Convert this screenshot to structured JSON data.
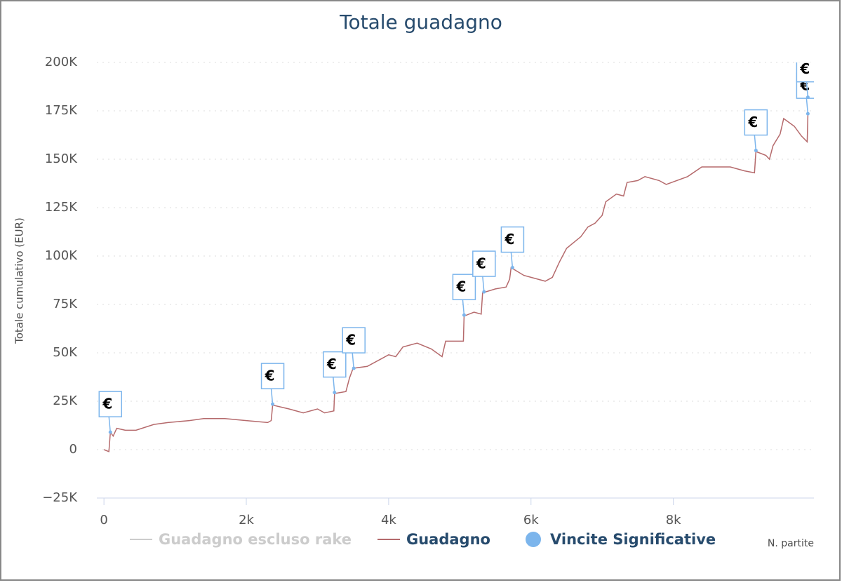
{
  "chart_data": {
    "type": "line",
    "title": "Totale guadagno",
    "y_axis_title": "Totale cumulativo (EUR)",
    "x_axis_title": "N. partite",
    "flag_label": "€",
    "xlim": [
      -100,
      9975
    ],
    "xticks": [
      0,
      {
        "value": 2000,
        "label": "2k"
      },
      {
        "value": 4000,
        "label": "4k"
      },
      {
        "value": 6000,
        "label": "6k"
      },
      {
        "value": 8000,
        "label": "8k"
      }
    ],
    "ylim": [
      -25000,
      200000
    ],
    "yticks": [
      {
        "value": -25000,
        "label": "−25K"
      },
      0,
      {
        "value": 25000,
        "label": "25K"
      },
      {
        "value": 50000,
        "label": "50K"
      },
      {
        "value": 75000,
        "label": "75K"
      },
      {
        "value": 100000,
        "label": "100K"
      },
      {
        "value": 125000,
        "label": "125K"
      },
      {
        "value": 150000,
        "label": "150K"
      },
      {
        "value": 175000,
        "label": "175K"
      },
      {
        "value": 200000,
        "label": "200K"
      }
    ],
    "grid": true,
    "series": [
      {
        "name": "Guadagno escluso rake",
        "color": "#cccccc",
        "visible": false
      },
      {
        "name": "Guadagno",
        "color": "#b56a6c",
        "x": [
          0,
          70,
          90,
          130,
          180,
          300,
          450,
          700,
          900,
          1200,
          1400,
          1700,
          2000,
          2300,
          2350,
          2370,
          2600,
          2800,
          3000,
          3100,
          3230,
          3240,
          3400,
          3450,
          3500,
          3700,
          3900,
          4000,
          4100,
          4200,
          4400,
          4600,
          4750,
          4800,
          5050,
          5060,
          5200,
          5300,
          5320,
          5500,
          5650,
          5700,
          5720,
          5900,
          6100,
          6200,
          6300,
          6400,
          6500,
          6700,
          6800,
          6900,
          7000,
          7050,
          7200,
          7300,
          7350,
          7500,
          7600,
          7800,
          7900,
          8200,
          8400,
          8600,
          8800,
          9000,
          9140,
          9160,
          9300,
          9350,
          9400,
          9500,
          9550,
          9700,
          9800,
          9880,
          9890
        ],
        "values": [
          0,
          -1000,
          9000,
          7000,
          11000,
          10000,
          10000,
          13000,
          14000,
          15000,
          16000,
          16000,
          15000,
          14000,
          15000,
          23000,
          21000,
          19000,
          21000,
          19000,
          20000,
          29000,
          30000,
          37000,
          42000,
          43000,
          47000,
          49000,
          48000,
          53000,
          55000,
          52000,
          48000,
          56000,
          56000,
          69000,
          71000,
          70000,
          81000,
          83000,
          84000,
          88000,
          94000,
          90000,
          88000,
          87000,
          89000,
          97000,
          104000,
          110000,
          115000,
          117000,
          121000,
          128000,
          132000,
          131000,
          138000,
          139000,
          141000,
          139000,
          137000,
          141000,
          146000,
          146000,
          146000,
          144000,
          143000,
          154000,
          152000,
          150000,
          157000,
          163000,
          171000,
          167000,
          162000,
          159000,
          173000
        ]
      },
      {
        "name": "Vincite Significative",
        "color": "#7cb5ec",
        "type": "scatter",
        "x": [
          90,
          2370,
          3240,
          3510,
          5060,
          5340,
          5740,
          9160,
          9890,
          9890
        ],
        "values": [
          9000,
          23500,
          29500,
          42000,
          69500,
          81500,
          94000,
          154500,
          173500,
          182000
        ]
      }
    ]
  }
}
